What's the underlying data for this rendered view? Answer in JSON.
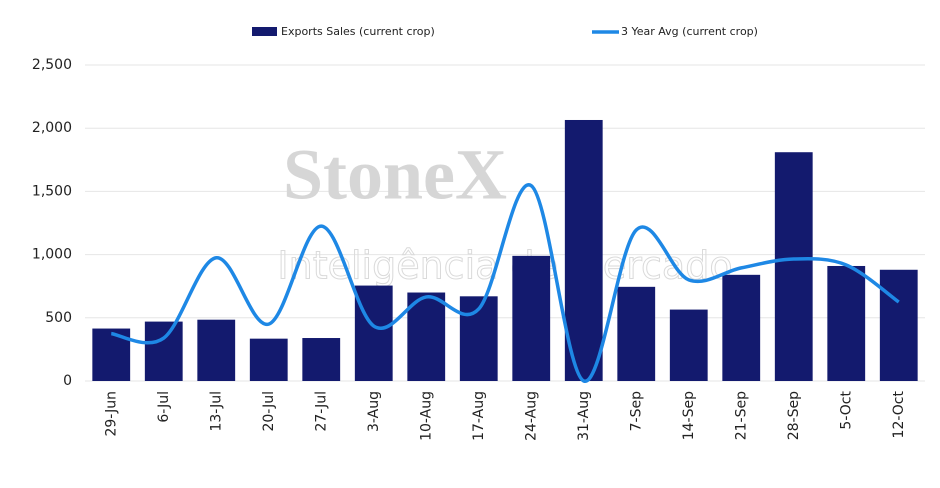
{
  "chart_data": {
    "type": "bar-line",
    "watermark": {
      "title": "StoneX",
      "subtitle": "Inteligência de Mercado"
    },
    "categories": [
      "29-Jun",
      "6-Jul",
      "13-Jul",
      "20-Jul",
      "27-Jul",
      "3-Aug",
      "10-Aug",
      "17-Aug",
      "24-Aug",
      "31-Aug",
      "7-Sep",
      "14-Sep",
      "21-Sep",
      "28-Sep",
      "5-Oct",
      "12-Oct"
    ],
    "series": [
      {
        "name": "Exports Sales (current crop)",
        "type": "bar",
        "color": "#131a6e",
        "values": [
          415,
          470,
          485,
          335,
          340,
          755,
          700,
          670,
          990,
          2065,
          745,
          565,
          840,
          1810,
          910,
          880
        ]
      },
      {
        "name": "3 Year Avg (current crop)",
        "type": "line",
        "color": "#1e88e5",
        "values": [
          375,
          340,
          975,
          450,
          1225,
          435,
          665,
          570,
          1545,
          0,
          1195,
          800,
          895,
          965,
          918,
          625
        ]
      }
    ],
    "ylim": [
      0,
      2500
    ],
    "yticks": [
      0,
      {
        "value": 500,
        "label": "500"
      },
      {
        "value": 1000,
        "label": "1,000"
      },
      {
        "value": 1500,
        "label": "1,500"
      },
      {
        "value": 2000,
        "label": "2,000"
      },
      {
        "value": 2500,
        "label": "2,500"
      }
    ],
    "grid": true
  }
}
